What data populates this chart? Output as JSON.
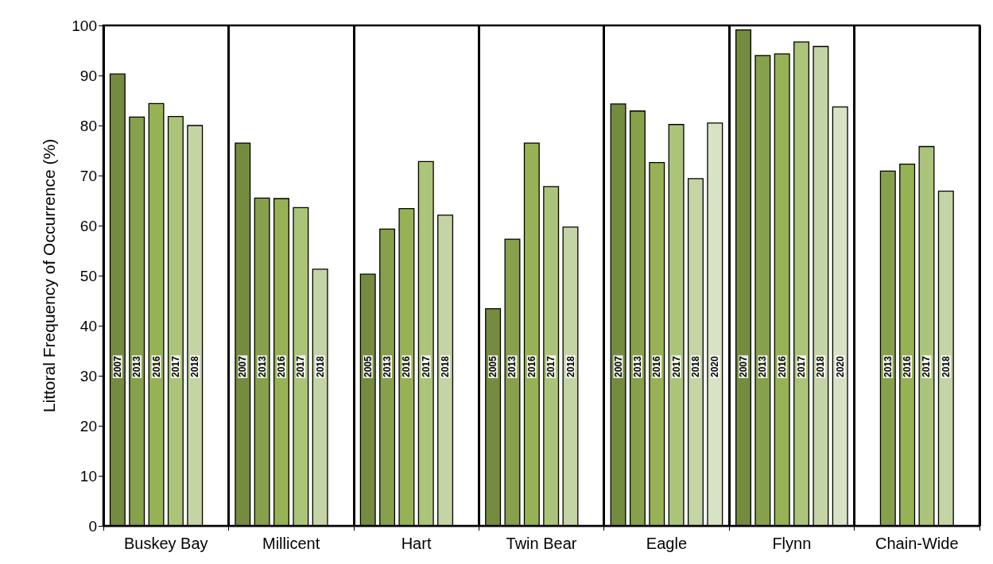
{
  "chart_data": {
    "type": "bar",
    "ylabel": "Littoral Frequency of Occurrence (%)",
    "categories": [
      "Buskey Bay",
      "Millicent",
      "Hart",
      "Twin Bear",
      "Eagle",
      "Flynn",
      "Chain-Wide"
    ],
    "series": [
      {
        "name": "2007",
        "color": "#748b40",
        "values": [
          90.4,
          76.6,
          null,
          null,
          84.4,
          99.2,
          null
        ]
      },
      {
        "name": "2005",
        "color": "#748b40",
        "values": [
          null,
          null,
          50.4,
          43.5,
          null,
          null,
          null
        ]
      },
      {
        "name": "2013",
        "color": "#87a04b",
        "values": [
          81.8,
          65.6,
          59.4,
          57.4,
          83.0,
          94.1,
          71.0
        ]
      },
      {
        "name": "2016",
        "color": "#97b255",
        "values": [
          84.5,
          65.5,
          63.5,
          76.6,
          72.7,
          94.4,
          72.4
        ]
      },
      {
        "name": "2017",
        "color": "#abc47a",
        "values": [
          81.9,
          63.7,
          72.9,
          67.9,
          80.3,
          96.8,
          75.9
        ]
      },
      {
        "name": "2018",
        "color": "#c4d4a5",
        "values": [
          80.1,
          51.4,
          62.2,
          59.8,
          69.5,
          95.9,
          67.0
        ]
      },
      {
        "name": "2020",
        "color": "#d8e3c5",
        "values": [
          null,
          null,
          null,
          null,
          80.6,
          83.8,
          null
        ]
      }
    ],
    "ylim": [
      0,
      100
    ],
    "yticks": [
      0,
      10,
      20,
      30,
      40,
      50,
      60,
      70,
      80,
      90,
      100
    ],
    "grid": "x"
  }
}
